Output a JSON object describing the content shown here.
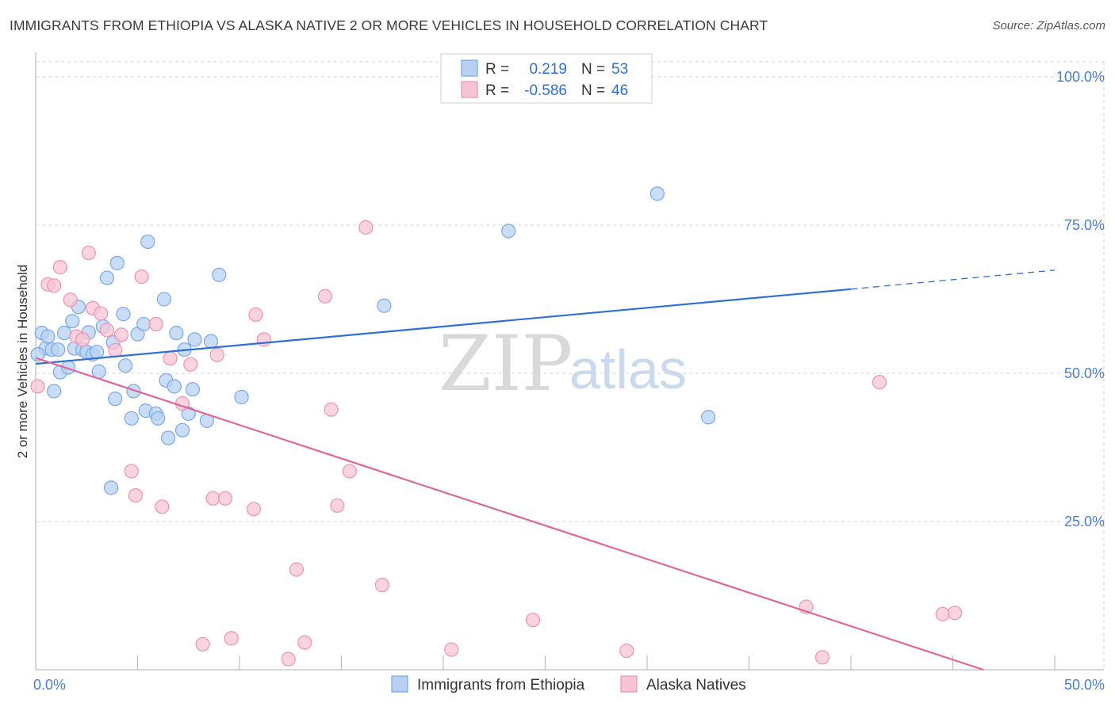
{
  "header": {
    "title": "IMMIGRANTS FROM ETHIOPIA VS ALASKA NATIVE 2 OR MORE VEHICLES IN HOUSEHOLD CORRELATION CHART",
    "source": "Source: ZipAtlas.com"
  },
  "watermark": {
    "zip": "ZIP",
    "atlas": "atlas"
  },
  "legend": {
    "r_label": "R =",
    "n_label": "N =",
    "series": [
      {
        "r": "0.219",
        "n": "53"
      },
      {
        "r": "-0.586",
        "n": "46"
      }
    ]
  },
  "chart_data": {
    "type": "scatter",
    "title": "IMMIGRANTS FROM ETHIOPIA VS ALASKA NATIVE 2 OR MORE VEHICLES IN HOUSEHOLD CORRELATION CHART",
    "xlabel": "",
    "ylabel": "2 or more Vehicles in Household",
    "xlim": [
      0,
      50
    ],
    "ylim": [
      0,
      100
    ],
    "x_tick_labels": [
      "0.0%",
      "50.0%"
    ],
    "y_ticks": [
      25,
      50,
      75,
      100
    ],
    "y_tick_labels": [
      "25.0%",
      "50.0%",
      "75.0%",
      "100.0%"
    ],
    "colors": {
      "ethiopia_fill": "#b8d1f3",
      "ethiopia_stroke": "#7aa7e6",
      "ethiopia_line": "#2f6fd6",
      "alaska_fill": "#f7c4d4",
      "alaska_stroke": "#ec93b2",
      "alaska_line": "#e0669a",
      "grid": "#d5d5d5",
      "axis_text": "#4a7fd0"
    },
    "series": [
      {
        "name": "Immigrants from Ethiopia",
        "r": 0.219,
        "n": 53,
        "trend": {
          "x0": 0,
          "y0": 51.6,
          "x1": 40,
          "y1": 64.2,
          "dash_to_x": 50,
          "dash_to_y": 67.4
        },
        "points": [
          {
            "x": 0.3,
            "y": 56.8
          },
          {
            "x": 0.5,
            "y": 54.2
          },
          {
            "x": 0.6,
            "y": 56.2
          },
          {
            "x": 0.8,
            "y": 54.0
          },
          {
            "x": 0.9,
            "y": 47.0
          },
          {
            "x": 1.1,
            "y": 54.0
          },
          {
            "x": 1.2,
            "y": 50.2
          },
          {
            "x": 1.4,
            "y": 56.8
          },
          {
            "x": 1.6,
            "y": 51.0
          },
          {
            "x": 1.8,
            "y": 58.8
          },
          {
            "x": 1.9,
            "y": 54.2
          },
          {
            "x": 2.1,
            "y": 61.2
          },
          {
            "x": 2.3,
            "y": 54.0
          },
          {
            "x": 2.5,
            "y": 53.6
          },
          {
            "x": 2.6,
            "y": 56.9
          },
          {
            "x": 2.8,
            "y": 53.2
          },
          {
            "x": 3.0,
            "y": 53.6
          },
          {
            "x": 3.1,
            "y": 50.3
          },
          {
            "x": 3.3,
            "y": 57.9
          },
          {
            "x": 3.5,
            "y": 66.1
          },
          {
            "x": 3.7,
            "y": 30.7
          },
          {
            "x": 3.8,
            "y": 55.2
          },
          {
            "x": 3.9,
            "y": 45.7
          },
          {
            "x": 4.0,
            "y": 68.6
          },
          {
            "x": 4.3,
            "y": 60.0
          },
          {
            "x": 4.4,
            "y": 51.3
          },
          {
            "x": 4.7,
            "y": 42.4
          },
          {
            "x": 4.8,
            "y": 47.0
          },
          {
            "x": 5.0,
            "y": 56.6
          },
          {
            "x": 5.3,
            "y": 58.3
          },
          {
            "x": 5.4,
            "y": 43.7
          },
          {
            "x": 5.5,
            "y": 72.2
          },
          {
            "x": 5.9,
            "y": 43.2
          },
          {
            "x": 6.0,
            "y": 42.4
          },
          {
            "x": 6.3,
            "y": 62.5
          },
          {
            "x": 6.4,
            "y": 48.8
          },
          {
            "x": 6.5,
            "y": 39.1
          },
          {
            "x": 6.8,
            "y": 47.8
          },
          {
            "x": 6.9,
            "y": 56.8
          },
          {
            "x": 7.2,
            "y": 40.4
          },
          {
            "x": 7.3,
            "y": 54.0
          },
          {
            "x": 7.5,
            "y": 43.2
          },
          {
            "x": 7.7,
            "y": 47.3
          },
          {
            "x": 7.8,
            "y": 55.7
          },
          {
            "x": 8.4,
            "y": 42.0
          },
          {
            "x": 8.6,
            "y": 55.4
          },
          {
            "x": 9.0,
            "y": 66.6
          },
          {
            "x": 10.1,
            "y": 46.0
          },
          {
            "x": 17.1,
            "y": 61.4
          },
          {
            "x": 23.2,
            "y": 74.0
          },
          {
            "x": 30.5,
            "y": 80.3
          },
          {
            "x": 33.0,
            "y": 42.6
          },
          {
            "x": 0.1,
            "y": 53.2
          }
        ]
      },
      {
        "name": "Alaska Natives",
        "r": -0.586,
        "n": 46,
        "trend": {
          "x0": 0,
          "y0": 52.6,
          "x1": 46.5,
          "y1": 0
        },
        "points": [
          {
            "x": 0.1,
            "y": 47.8
          },
          {
            "x": 0.6,
            "y": 65.0
          },
          {
            "x": 0.9,
            "y": 64.8
          },
          {
            "x": 1.2,
            "y": 67.9
          },
          {
            "x": 1.7,
            "y": 62.4
          },
          {
            "x": 2.0,
            "y": 56.2
          },
          {
            "x": 2.3,
            "y": 55.7
          },
          {
            "x": 2.6,
            "y": 70.3
          },
          {
            "x": 2.8,
            "y": 61.0
          },
          {
            "x": 3.2,
            "y": 60.1
          },
          {
            "x": 3.5,
            "y": 57.3
          },
          {
            "x": 3.9,
            "y": 53.9
          },
          {
            "x": 4.2,
            "y": 56.5
          },
          {
            "x": 4.7,
            "y": 33.5
          },
          {
            "x": 4.9,
            "y": 29.4
          },
          {
            "x": 5.2,
            "y": 66.3
          },
          {
            "x": 5.9,
            "y": 58.3
          },
          {
            "x": 6.2,
            "y": 27.5
          },
          {
            "x": 6.6,
            "y": 52.5
          },
          {
            "x": 7.2,
            "y": 44.9
          },
          {
            "x": 7.6,
            "y": 51.5
          },
          {
            "x": 8.2,
            "y": 4.3
          },
          {
            "x": 8.7,
            "y": 28.9
          },
          {
            "x": 8.9,
            "y": 53.1
          },
          {
            "x": 9.3,
            "y": 28.9
          },
          {
            "x": 9.6,
            "y": 5.3
          },
          {
            "x": 10.7,
            "y": 27.1
          },
          {
            "x": 10.8,
            "y": 59.9
          },
          {
            "x": 11.2,
            "y": 55.7
          },
          {
            "x": 12.4,
            "y": 1.8
          },
          {
            "x": 12.8,
            "y": 16.9
          },
          {
            "x": 13.2,
            "y": 4.6
          },
          {
            "x": 14.2,
            "y": 63.0
          },
          {
            "x": 14.5,
            "y": 43.9
          },
          {
            "x": 14.8,
            "y": 27.7
          },
          {
            "x": 15.4,
            "y": 33.5
          },
          {
            "x": 16.2,
            "y": 74.6
          },
          {
            "x": 17.0,
            "y": 14.3
          },
          {
            "x": 20.4,
            "y": 3.4
          },
          {
            "x": 24.4,
            "y": 8.4
          },
          {
            "x": 29.0,
            "y": 3.2
          },
          {
            "x": 37.8,
            "y": 10.6
          },
          {
            "x": 38.6,
            "y": 2.1
          },
          {
            "x": 41.4,
            "y": 48.5
          },
          {
            "x": 44.5,
            "y": 9.4
          },
          {
            "x": 45.1,
            "y": 9.6
          }
        ]
      }
    ]
  }
}
